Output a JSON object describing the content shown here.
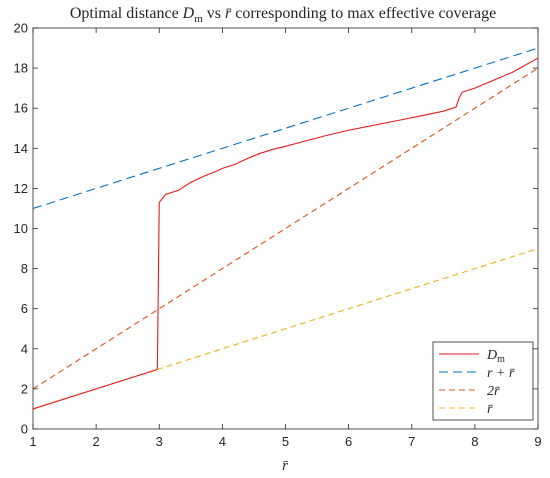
{
  "chart_data": {
    "type": "line",
    "title": {
      "prefix": "Optimal distance ",
      "dm_main": "D",
      "dm_sub": "m",
      "mid": " vs ",
      "rbar": "r̄",
      "suffix": " corresponding to max effective coverage"
    },
    "xlabel": "r̄",
    "ylabel": "",
    "xlim": [
      1,
      9
    ],
    "ylim": [
      0,
      20
    ],
    "xticks": [
      1,
      2,
      3,
      4,
      5,
      6,
      7,
      8,
      9
    ],
    "yticks": [
      0,
      2,
      4,
      6,
      8,
      10,
      12,
      14,
      16,
      18,
      20
    ],
    "grid": false,
    "legend_position": "bottom-right",
    "series": [
      {
        "name": "D_m",
        "legend": {
          "main": "D",
          "sub": "m"
        },
        "color": "#e41a1c",
        "dash": "solid",
        "x": [
          1,
          2,
          2.95,
          2.97,
          3.0,
          3.05,
          3.1,
          3.2,
          3.3,
          3.5,
          3.7,
          3.9,
          4.0,
          4.2,
          4.4,
          4.6,
          4.8,
          5.0,
          5.3,
          5.6,
          6.0,
          6.4,
          6.8,
          7.2,
          7.5,
          7.7,
          7.75,
          7.8,
          8.0,
          8.3,
          8.6,
          9.0
        ],
        "y": [
          1.0,
          2.0,
          2.95,
          3.0,
          11.3,
          11.5,
          11.7,
          11.8,
          11.9,
          12.3,
          12.6,
          12.85,
          13.0,
          13.2,
          13.5,
          13.75,
          13.95,
          14.1,
          14.35,
          14.6,
          14.9,
          15.15,
          15.4,
          15.65,
          15.85,
          16.05,
          16.5,
          16.8,
          17.0,
          17.4,
          17.8,
          18.5
        ]
      },
      {
        "name": "r + r̄",
        "legend": {
          "text": "r + r̄"
        },
        "color": "#0072bd",
        "dash": "long",
        "x": [
          1,
          9
        ],
        "y": [
          11,
          19
        ]
      },
      {
        "name": "2r̄",
        "legend": {
          "text": "2r̄"
        },
        "color": "#d95319",
        "dash": "medium",
        "x": [
          1,
          9
        ],
        "y": [
          2,
          18
        ]
      },
      {
        "name": "r̄",
        "legend": {
          "text": "r̄"
        },
        "color": "#edb120",
        "dash": "medium",
        "x": [
          1,
          9
        ],
        "y": [
          1,
          9
        ]
      }
    ]
  }
}
